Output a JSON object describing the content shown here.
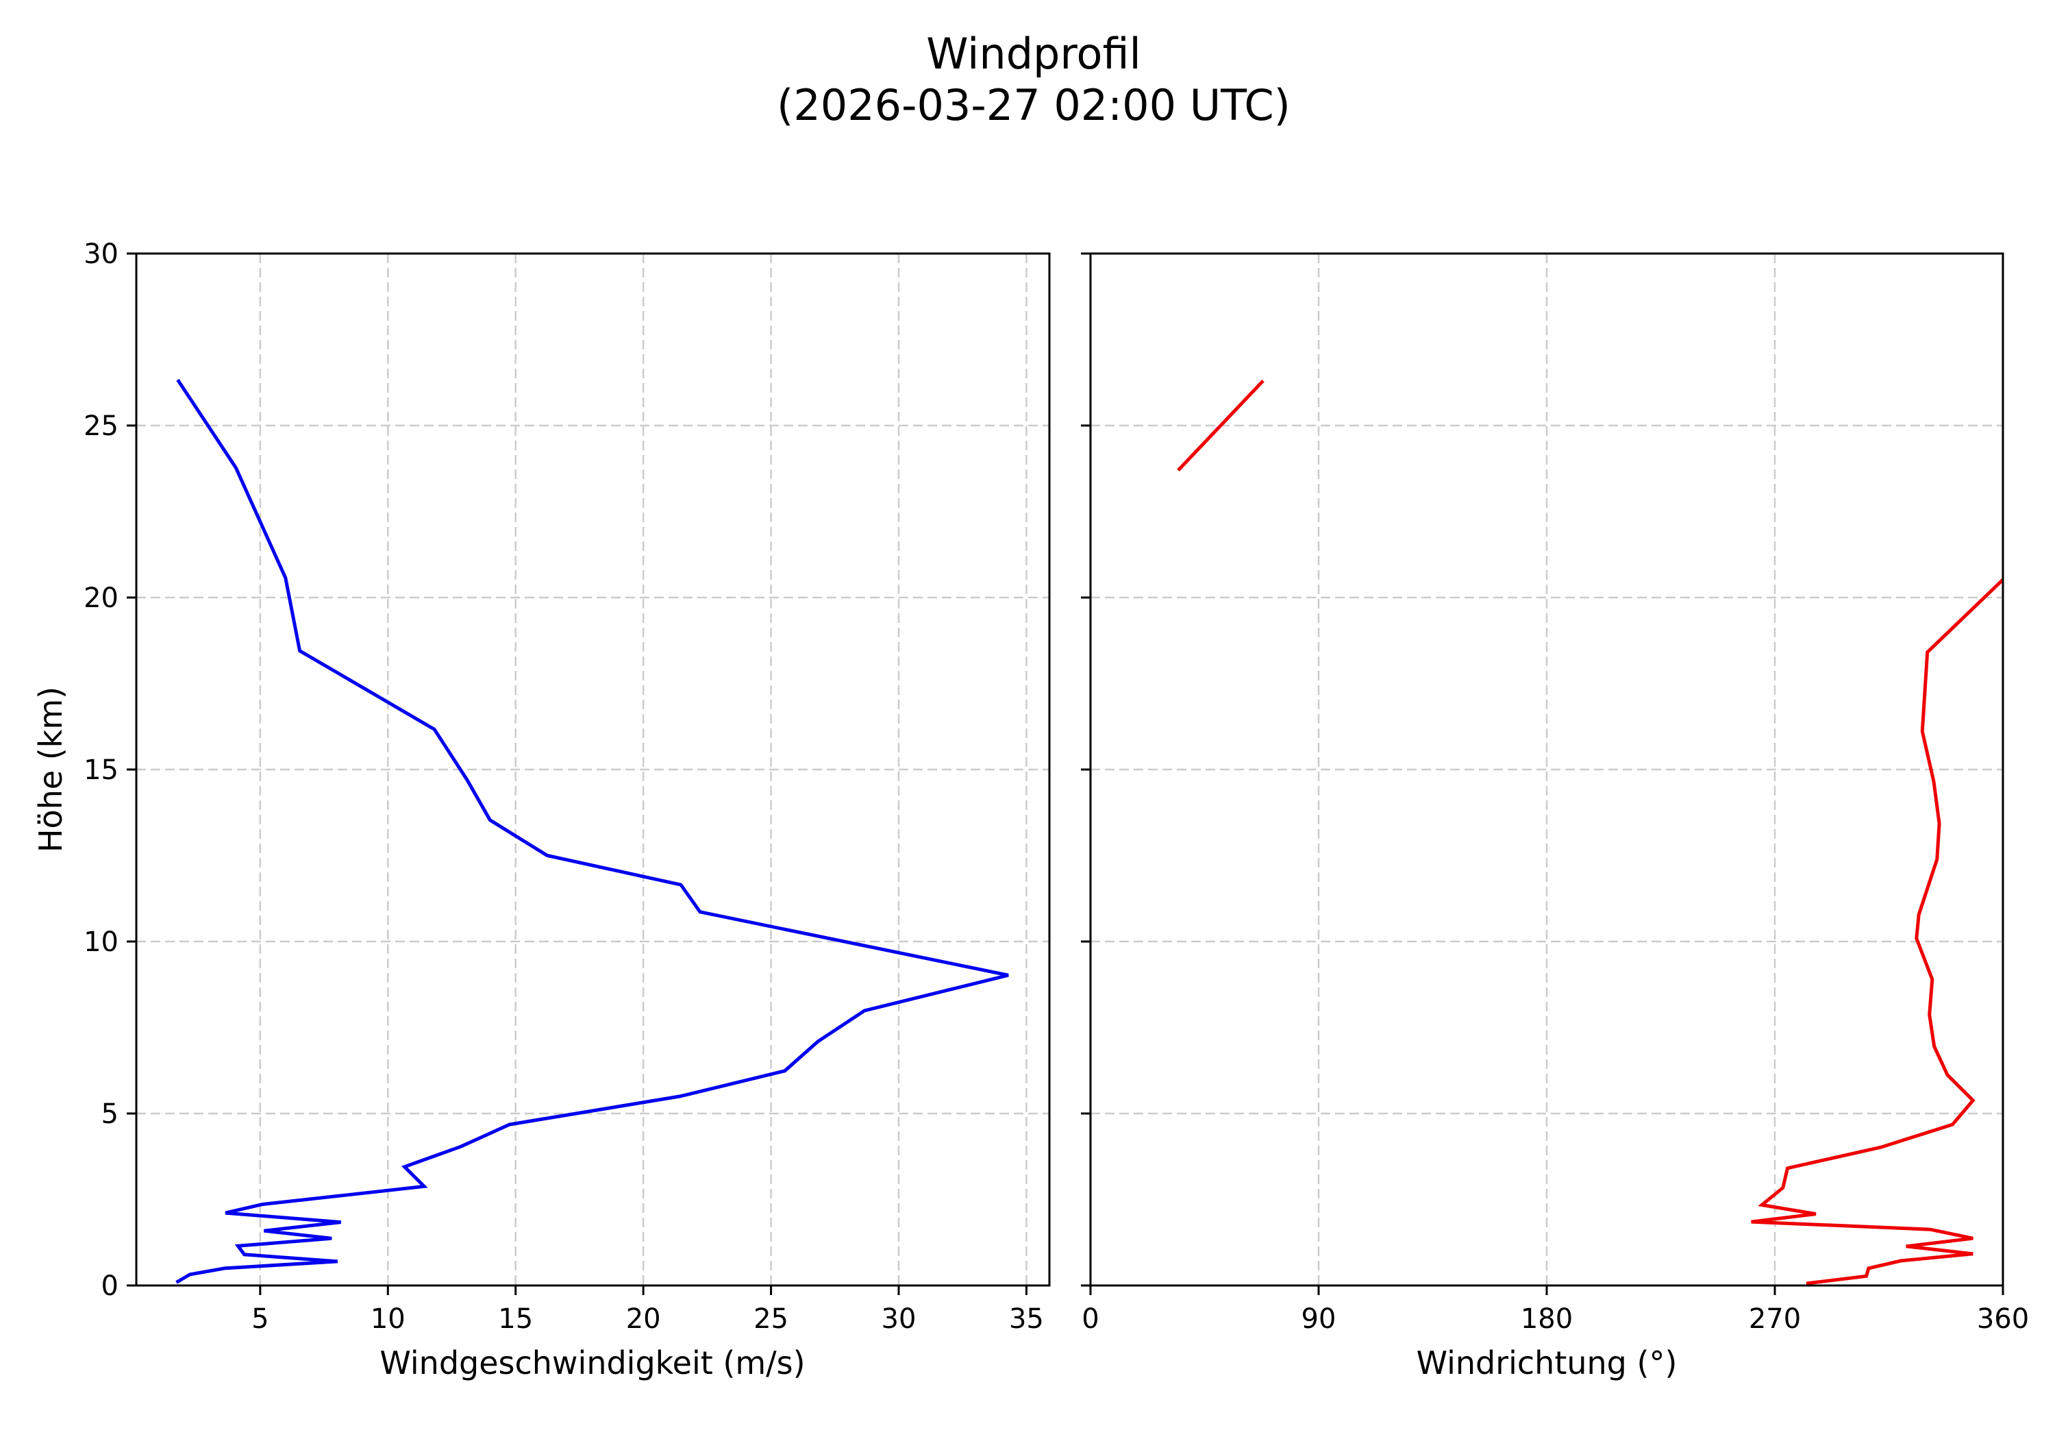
{
  "figure": {
    "title_line1": "Windprofil",
    "title_line2": "(2026-03-27 02:00 UTC)"
  },
  "left_axes": {
    "xlabel": "Windgeschwindigkeit (m/s)",
    "ylabel": "Höhe (km)",
    "xticks": [
      "5",
      "10",
      "15",
      "20",
      "25",
      "30",
      "35"
    ],
    "yticks": [
      "0",
      "5",
      "10",
      "15",
      "20",
      "25",
      "30"
    ]
  },
  "right_axes": {
    "xlabel": "Windrichtung (°)",
    "xticks": [
      "0",
      "90",
      "180",
      "270",
      "360"
    ]
  },
  "colors": {
    "speed": "#0000ee",
    "direction": "#ee0000",
    "grid": "#cccccc"
  },
  "chart_data": [
    {
      "type": "line",
      "title": "Windprofil (2026-03-27 02:00 UTC)",
      "xlabel": "Windgeschwindigkeit (m/s)",
      "ylabel": "Höhe (km)",
      "xlim": [
        0.15,
        35.9
      ],
      "ylim": [
        0,
        30
      ],
      "xticks": [
        5,
        10,
        15,
        20,
        25,
        30,
        35
      ],
      "yticks": [
        0,
        5,
        10,
        15,
        20,
        25,
        30
      ],
      "grid": true,
      "series": [
        {
          "name": "Windgeschwindigkeit",
          "color": "#0000ee",
          "x": [
            1.72,
            2.25,
            3.61,
            8.03,
            4.38,
            4.13,
            7.8,
            5.15,
            8.16,
            3.64,
            5.1,
            11.42,
            10.65,
            12.86,
            14.76,
            21.44,
            25.54,
            26.83,
            28.66,
            34.29,
            22.22,
            21.47,
            16.24,
            14.0,
            13.1,
            11.82,
            6.55,
            5.99,
            4.05,
            1.77
          ],
          "y": [
            0.09,
            0.32,
            0.5,
            0.7,
            0.9,
            1.15,
            1.37,
            1.59,
            1.84,
            2.11,
            2.36,
            2.88,
            3.45,
            4.04,
            4.68,
            5.5,
            6.24,
            7.09,
            7.99,
            9.02,
            10.86,
            11.65,
            12.5,
            13.53,
            14.7,
            16.17,
            18.45,
            20.57,
            23.77,
            26.33
          ]
        }
      ]
    },
    {
      "type": "line",
      "title": "",
      "xlabel": "Windrichtung (°)",
      "ylabel": "Höhe (km)",
      "xlim": [
        0,
        360
      ],
      "ylim": [
        0,
        30
      ],
      "xticks": [
        0,
        90,
        180,
        270,
        360
      ],
      "yticks": [
        0,
        5,
        10,
        15,
        20,
        25,
        30
      ],
      "grid": true,
      "series": [
        {
          "name": "Windrichtung",
          "color": "#ee0000",
          "x": [
            282.4,
            306.1,
            307.0,
            319.8,
            348.2,
            321.8,
            348.2,
            331.3,
            260.7,
            286.2,
            264.9,
            273.2,
            275.0,
            311.9,
            340.1,
            348.2,
            338.1,
            332.9,
            331.0,
            332.1,
            325.9,
            326.8,
            334.0,
            334.9,
            332.7,
            328.2,
            330.2,
            360.0
          ],
          "y": [
            0.06,
            0.27,
            0.5,
            0.72,
            0.92,
            1.14,
            1.37,
            1.63,
            1.85,
            2.08,
            2.34,
            2.84,
            3.41,
            4.02,
            4.68,
            5.38,
            6.12,
            6.95,
            7.87,
            8.9,
            10.09,
            10.78,
            12.39,
            13.43,
            14.65,
            16.11,
            18.41,
            20.52
          ]
        },
        {
          "name": "Windrichtung (wrapped)",
          "color": "#ee0000",
          "x": [
            34.6,
            68.1
          ],
          "y": [
            23.7,
            26.3
          ]
        }
      ]
    }
  ]
}
